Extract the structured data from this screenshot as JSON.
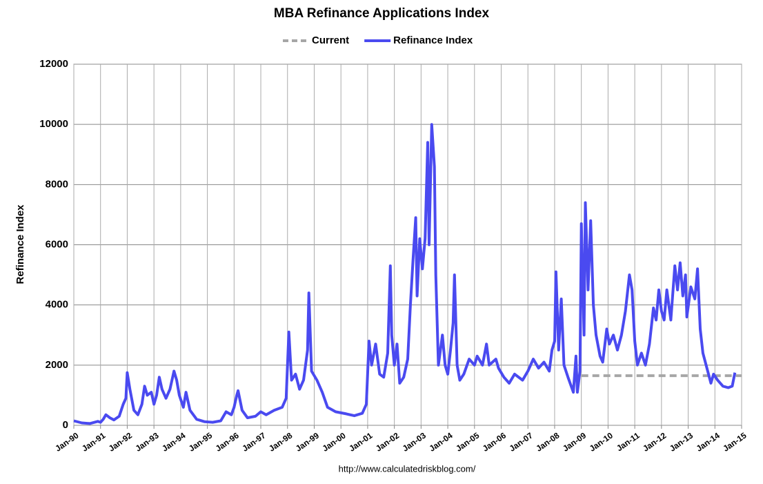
{
  "chart_data": {
    "type": "line",
    "title": "MBA Refinance Applications Index",
    "y_label": "Refinance Index",
    "source": "http://www.calculatedriskblog.com/",
    "xlim": [
      1990,
      2015
    ],
    "xticks": [
      {
        "value": 1990,
        "label": "Jan-90"
      },
      {
        "value": 1991,
        "label": "Jan-91"
      },
      {
        "value": 1992,
        "label": "Jan-92"
      },
      {
        "value": 1993,
        "label": "Jan-93"
      },
      {
        "value": 1994,
        "label": "Jan-94"
      },
      {
        "value": 1995,
        "label": "Jan-95"
      },
      {
        "value": 1996,
        "label": "Jan-96"
      },
      {
        "value": 1997,
        "label": "Jan-97"
      },
      {
        "value": 1998,
        "label": "Jan-98"
      },
      {
        "value": 1999,
        "label": "Jan-99"
      },
      {
        "value": 2000,
        "label": "Jan-00"
      },
      {
        "value": 2001,
        "label": "Jan-01"
      },
      {
        "value": 2002,
        "label": "Jan-02"
      },
      {
        "value": 2003,
        "label": "Jan-03"
      },
      {
        "value": 2004,
        "label": "Jan-04"
      },
      {
        "value": 2005,
        "label": "Jan-05"
      },
      {
        "value": 2006,
        "label": "Jan-06"
      },
      {
        "value": 2007,
        "label": "Jan-07"
      },
      {
        "value": 2008,
        "label": "Jan-08"
      },
      {
        "value": 2009,
        "label": "Jan-09"
      },
      {
        "value": 2010,
        "label": "Jan-10"
      },
      {
        "value": 2011,
        "label": "Jan-11"
      },
      {
        "value": 2012,
        "label": "Jan-12"
      },
      {
        "value": 2013,
        "label": "Jan-13"
      },
      {
        "value": 2014,
        "label": "Jan-14"
      },
      {
        "value": 2015,
        "label": "Jan-15"
      }
    ],
    "ylim": [
      0,
      12000
    ],
    "yticks": [
      0,
      2000,
      4000,
      6000,
      8000,
      10000,
      12000
    ],
    "grid": true,
    "legend": "top",
    "series": [
      {
        "name": "Current",
        "color": "#a6a6a6",
        "dashed": true,
        "x": [
          2009,
          2015
        ],
        "values": [
          1650,
          1650
        ]
      },
      {
        "name": "Refinance Index",
        "color": "#4a4af0",
        "dashed": false,
        "x": [
          1990.0,
          1990.3,
          1990.6,
          1990.9,
          1991.0,
          1991.1,
          1991.2,
          1991.35,
          1991.5,
          1991.7,
          1991.85,
          1991.95,
          1992.0,
          1992.1,
          1992.25,
          1992.4,
          1992.55,
          1992.65,
          1992.75,
          1992.9,
          1993.0,
          1993.1,
          1993.2,
          1993.3,
          1993.45,
          1993.6,
          1993.75,
          1993.85,
          1993.95,
          1994.1,
          1994.2,
          1994.35,
          1994.6,
          1994.9,
          1995.2,
          1995.5,
          1995.7,
          1995.9,
          1996.0,
          1996.1,
          1996.15,
          1996.3,
          1996.5,
          1996.8,
          1997.0,
          1997.2,
          1997.5,
          1997.8,
          1997.95,
          1998.05,
          1998.15,
          1998.3,
          1998.45,
          1998.6,
          1998.75,
          1998.8,
          1998.9,
          1999.1,
          1999.3,
          1999.5,
          1999.8,
          2000.2,
          2000.5,
          2000.8,
          2000.95,
          2001.05,
          2001.15,
          2001.3,
          2001.45,
          2001.6,
          2001.75,
          2001.85,
          2001.9,
          2002.0,
          2002.1,
          2002.2,
          2002.35,
          2002.5,
          2002.6,
          2002.7,
          2002.8,
          2002.85,
          2002.95,
          2003.05,
          2003.15,
          2003.25,
          2003.3,
          2003.4,
          2003.5,
          2003.55,
          2003.65,
          2003.8,
          2003.9,
          2004.0,
          2004.1,
          2004.2,
          2004.25,
          2004.35,
          2004.45,
          2004.6,
          2004.8,
          2005.0,
          2005.1,
          2005.3,
          2005.45,
          2005.55,
          2005.8,
          2005.9,
          2006.1,
          2006.3,
          2006.5,
          2006.8,
          2007.0,
          2007.2,
          2007.4,
          2007.6,
          2007.8,
          2007.9,
          2008.0,
          2008.05,
          2008.15,
          2008.25,
          2008.35,
          2008.5,
          2008.7,
          2008.8,
          2008.85,
          2008.95,
          2009.0,
          2009.1,
          2009.15,
          2009.25,
          2009.35,
          2009.45,
          2009.55,
          2009.7,
          2009.8,
          2009.95,
          2010.05,
          2010.2,
          2010.35,
          2010.5,
          2010.65,
          2010.8,
          2010.9,
          2011.0,
          2011.1,
          2011.25,
          2011.4,
          2011.55,
          2011.7,
          2011.8,
          2011.9,
          2012.0,
          2012.1,
          2012.2,
          2012.35,
          2012.5,
          2012.6,
          2012.7,
          2012.8,
          2012.9,
          2012.95,
          2013.1,
          2013.25,
          2013.35,
          2013.45,
          2013.55,
          2013.7,
          2013.85,
          2013.95,
          2014.1,
          2014.3,
          2014.5,
          2014.65,
          2014.75
        ],
        "values": [
          150,
          80,
          60,
          130,
          100,
          200,
          350,
          250,
          180,
          300,
          700,
          900,
          1750,
          1200,
          500,
          350,
          700,
          1300,
          1000,
          1100,
          700,
          1000,
          1600,
          1200,
          900,
          1200,
          1800,
          1500,
          1000,
          600,
          1100,
          500,
          200,
          120,
          100,
          150,
          450,
          350,
          600,
          1000,
          1150,
          500,
          250,
          300,
          450,
          350,
          500,
          600,
          900,
          3100,
          1500,
          1700,
          1200,
          1500,
          2500,
          4400,
          1800,
          1500,
          1100,
          600,
          450,
          380,
          320,
          400,
          700,
          2800,
          2000,
          2700,
          1700,
          1600,
          2400,
          5300,
          3000,
          2000,
          2700,
          1400,
          1600,
          2200,
          4000,
          5500,
          6900,
          4300,
          6200,
          5200,
          6200,
          9400,
          6000,
          10000,
          8600,
          5000,
          2000,
          3000,
          2000,
          1700,
          2500,
          3400,
          5000,
          2000,
          1500,
          1700,
          2200,
          2000,
          2300,
          2000,
          2700,
          2000,
          2200,
          1900,
          1600,
          1400,
          1700,
          1500,
          1800,
          2200,
          1900,
          2100,
          1800,
          2500,
          2800,
          5100,
          2500,
          4200,
          2000,
          1600,
          1100,
          2300,
          1100,
          1800,
          6700,
          3000,
          7400,
          4500,
          6800,
          4000,
          3000,
          2300,
          2100,
          3200,
          2700,
          3000,
          2500,
          3000,
          3800,
          5000,
          4500,
          2800,
          2000,
          2400,
          2000,
          2700,
          3900,
          3500,
          4500,
          3800,
          3500,
          4500,
          3500,
          5300,
          4500,
          5400,
          4300,
          5000,
          3600,
          4600,
          4200,
          5200,
          3200,
          2400,
          1900,
          1400,
          1700,
          1500,
          1300,
          1250,
          1300,
          1750
        ]
      }
    ]
  }
}
